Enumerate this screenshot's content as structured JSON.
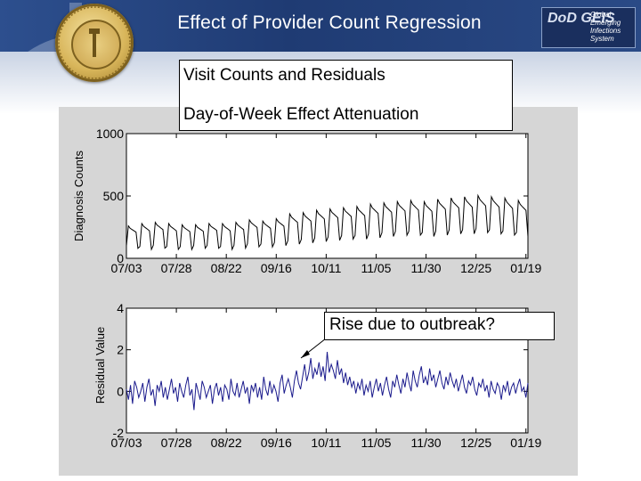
{
  "page": {
    "title": "Effect of Provider Count Regression",
    "callout_line1": "Visit Counts and Residuals",
    "callout_line2": "Day-of-Week Effect Attenuation",
    "annotation": "Rise due to outbreak?"
  },
  "logo": {
    "mark": "DoD GEIS",
    "line1": "Global",
    "line2": "Emerging",
    "line3": "Infections",
    "line4": "System"
  },
  "colors": {
    "banner": "#1f3b73",
    "panel": "#d6d6d6",
    "series": "#1a1a8c"
  },
  "chart_data": [
    {
      "type": "line",
      "ylabel": "Diagnosis Counts",
      "ylim": [
        0,
        1000
      ],
      "yticks": [
        "1000",
        "500",
        "0"
      ],
      "xticks": [
        "07/03",
        "07/28",
        "08/22",
        "09/16",
        "10/11",
        "11/05",
        "11/30",
        "12/25",
        "01/19"
      ],
      "x_start": "2000-07-03",
      "x_end": "2001-01-19",
      "series": [
        {
          "weekly_peak": [
            270,
            290,
            300,
            290,
            280,
            280,
            290,
            290,
            300,
            320,
            310,
            330,
            370,
            380,
            400,
            410,
            420,
            430,
            450,
            460,
            470,
            480,
            470,
            490,
            500,
            510,
            520,
            510,
            500,
            480
          ],
          "weekly_low": [
            70,
            60,
            70,
            60,
            60,
            70,
            70,
            60,
            70,
            80,
            80,
            90,
            100,
            110,
            120,
            130,
            140,
            140,
            150,
            160,
            170,
            170,
            160,
            170,
            180,
            180,
            190,
            180,
            170,
            160
          ]
        }
      ]
    },
    {
      "type": "line",
      "ylabel": "Residual Value",
      "ylim": [
        -2,
        4
      ],
      "yticks": [
        "4",
        "2",
        "0",
        "-2"
      ],
      "xticks": [
        "07/03",
        "07/28",
        "08/22",
        "09/16",
        "10/11",
        "11/05",
        "11/30",
        "12/25",
        "01/19"
      ],
      "x_start": "2000-07-03",
      "x_end": "2001-01-19",
      "series": [
        {
          "values": [
            0.1,
            -0.4,
            0.3,
            -0.6,
            0.5,
            0.2,
            -0.3,
            0.0,
            0.4,
            -0.5,
            0.2,
            0.6,
            -0.2,
            0.1,
            -0.7,
            0.3,
            0.0,
            0.5,
            -0.3,
            0.2,
            -0.4,
            0.1,
            0.6,
            -0.1,
            0.2,
            -0.5,
            0.4,
            0.0,
            -0.3,
            0.3,
            0.7,
            -0.2,
            0.1,
            -0.9,
            0.4,
            0.0,
            -0.4,
            0.5,
            0.2,
            -0.3,
            0.0,
            0.3,
            -0.6,
            0.1,
            0.4,
            -0.2,
            0.2,
            -0.5,
            0.3,
            0.1,
            -0.4,
            0.6,
            0.0,
            -0.2,
            0.4,
            -0.3,
            0.1,
            0.5,
            -0.1,
            0.2,
            -0.6,
            0.3,
            0.0,
            0.4,
            -0.3,
            0.2,
            -0.4,
            0.7,
            0.1,
            -0.2,
            0.5,
            -0.1,
            0.3,
            0.0,
            -0.5,
            0.4,
            0.8,
            -0.1,
            0.3,
            0.6,
            0.2,
            -0.3,
            0.5,
            1.0,
            0.4,
            0.1,
            0.7,
            1.3,
            0.5,
            0.9,
            1.6,
            0.6,
            1.1,
            0.8,
            1.4,
            0.7,
            1.2,
            0.5,
            1.9,
            0.9,
            1.3,
            1.0,
            0.6,
            1.5,
            0.8,
            1.1,
            0.4,
            0.9,
            0.3,
            0.7,
            0.2,
            0.5,
            -0.1,
            0.4,
            0.1,
            0.6,
            -0.2,
            0.3,
            0.0,
            0.5,
            -0.3,
            0.2,
            0.6,
            0.0,
            0.4,
            -0.2,
            0.3,
            0.7,
            0.1,
            -0.3,
            0.5,
            0.2,
            0.8,
            0.3,
            -0.1,
            0.6,
            0.2,
            0.9,
            0.4,
            0.0,
            1.0,
            0.5,
            0.2,
            0.8,
            1.2,
            0.4,
            0.7,
            0.3,
            1.1,
            0.5,
            0.8,
            0.2,
            0.6,
            1.0,
            0.4,
            0.1,
            0.7,
            0.3,
            0.9,
            0.5,
            0.2,
            0.6,
            0.0,
            0.4,
            0.8,
            0.2,
            -0.1,
            0.5,
            0.3,
            0.7,
            0.1,
            -0.2,
            0.4,
            0.2,
            0.6,
            0.0,
            0.3,
            -0.3,
            0.5,
            0.1,
            -0.1,
            0.4,
            0.2,
            -0.4,
            0.3,
            0.0,
            0.5,
            -0.2,
            0.2,
            0.4,
            -0.1,
            0.3,
            0.6,
            0.0,
            0.2,
            -0.3,
            0.4
          ]
        }
      ]
    }
  ]
}
